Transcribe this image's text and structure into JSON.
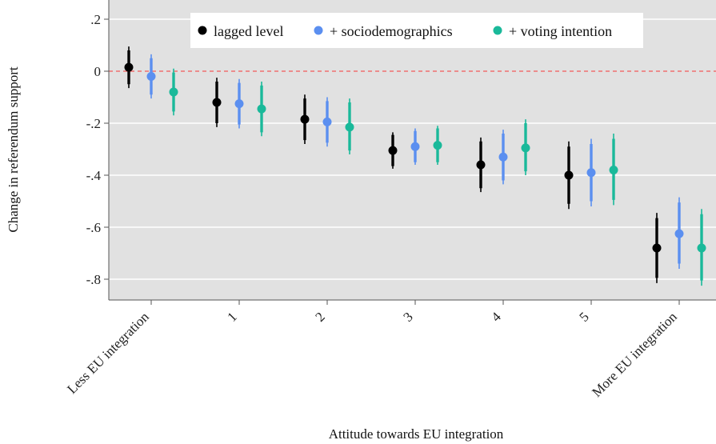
{
  "chart_data": {
    "type": "scatter",
    "subtype": "coefficient plot with 90% and 95% confidence intervals",
    "xlabel": "Attitude towards EU integration",
    "ylabel": "Change in referendum support",
    "categories": [
      "Less EU integration",
      "1",
      "2",
      "3",
      "4",
      "5",
      "More EU integration"
    ],
    "yticks": [
      0.2,
      0,
      -0.2,
      -0.4,
      -0.6,
      -0.8
    ],
    "ytick_labels": [
      ".2",
      "0",
      "-.2",
      "-.4",
      "-.6",
      "-.8"
    ],
    "ylim": [
      -0.875,
      0.225
    ],
    "reference_line": 0,
    "reference_line_color": "#f07070",
    "grid": true,
    "background_color": "#e1e1e1",
    "legend_position": "top-right",
    "series": [
      {
        "name": "lagged level",
        "color": "#000000",
        "values": [
          0.015,
          -0.12,
          -0.185,
          -0.305,
          -0.36,
          -0.4,
          -0.68
        ],
        "ci95": [
          [
            -0.065,
            0.095
          ],
          [
            -0.215,
            -0.025
          ],
          [
            -0.28,
            -0.09
          ],
          [
            -0.375,
            -0.235
          ],
          [
            -0.465,
            -0.255
          ],
          [
            -0.53,
            -0.27
          ],
          [
            -0.815,
            -0.545
          ]
        ],
        "ci90": [
          [
            -0.05,
            0.08
          ],
          [
            -0.2,
            -0.04
          ],
          [
            -0.265,
            -0.105
          ],
          [
            -0.365,
            -0.245
          ],
          [
            -0.45,
            -0.27
          ],
          [
            -0.51,
            -0.29
          ],
          [
            -0.795,
            -0.565
          ]
        ]
      },
      {
        "name": "+ sociodemographics",
        "color": "#5b8ff0",
        "values": [
          -0.02,
          -0.125,
          -0.195,
          -0.29,
          -0.33,
          -0.39,
          -0.625
        ],
        "ci95": [
          [
            -0.105,
            0.065
          ],
          [
            -0.22,
            -0.03
          ],
          [
            -0.29,
            -0.1
          ],
          [
            -0.36,
            -0.22
          ],
          [
            -0.435,
            -0.225
          ],
          [
            -0.52,
            -0.26
          ],
          [
            -0.76,
            -0.485
          ]
        ],
        "ci90": [
          [
            -0.09,
            0.05
          ],
          [
            -0.205,
            -0.045
          ],
          [
            -0.275,
            -0.115
          ],
          [
            -0.35,
            -0.23
          ],
          [
            -0.42,
            -0.24
          ],
          [
            -0.5,
            -0.28
          ],
          [
            -0.74,
            -0.505
          ]
        ]
      },
      {
        "name": "+ voting intention",
        "color": "#1ab99a",
        "values": [
          -0.08,
          -0.145,
          -0.215,
          -0.285,
          -0.295,
          -0.38,
          -0.68
        ],
        "ci95": [
          [
            -0.17,
            0.01
          ],
          [
            -0.25,
            -0.04
          ],
          [
            -0.32,
            -0.105
          ],
          [
            -0.36,
            -0.21
          ],
          [
            -0.4,
            -0.185
          ],
          [
            -0.515,
            -0.24
          ],
          [
            -0.825,
            -0.53
          ]
        ],
        "ci90": [
          [
            -0.155,
            -0.005
          ],
          [
            -0.235,
            -0.055
          ],
          [
            -0.305,
            -0.12
          ],
          [
            -0.35,
            -0.22
          ],
          [
            -0.385,
            -0.2
          ],
          [
            -0.495,
            -0.26
          ],
          [
            -0.805,
            -0.55
          ]
        ]
      }
    ]
  }
}
